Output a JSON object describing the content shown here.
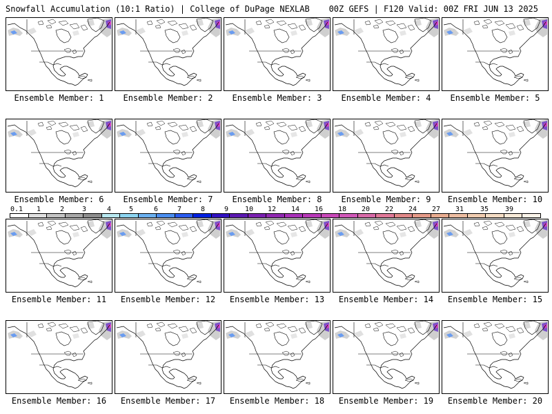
{
  "header": {
    "left": "Snowfall Accumulation (10:1 Ratio) | College of DuPage NEXLAB",
    "right": "00Z GEFS | F120 Valid: 00Z FRI JUN 13 2025"
  },
  "panels": [
    {
      "label": "Ensemble Member: 1"
    },
    {
      "label": "Ensemble Member: 2"
    },
    {
      "label": "Ensemble Member: 3"
    },
    {
      "label": "Ensemble Member: 4"
    },
    {
      "label": "Ensemble Member: 5"
    },
    {
      "label": "Ensemble Member: 6"
    },
    {
      "label": "Ensemble Member: 7"
    },
    {
      "label": "Ensemble Member: 8"
    },
    {
      "label": "Ensemble Member: 9"
    },
    {
      "label": "Ensemble Member: 10"
    },
    {
      "label": "Ensemble Member: 11"
    },
    {
      "label": "Ensemble Member: 12"
    },
    {
      "label": "Ensemble Member: 13"
    },
    {
      "label": "Ensemble Member: 14"
    },
    {
      "label": "Ensemble Member: 15"
    },
    {
      "label": "Ensemble Member: 16"
    },
    {
      "label": "Ensemble Member: 17"
    },
    {
      "label": "Ensemble Member: 18"
    },
    {
      "label": "Ensemble Member: 19"
    },
    {
      "label": "Ensemble Member: 20"
    }
  ],
  "colorbar": {
    "ticks": [
      "0.1",
      "1",
      "2",
      "3",
      "4",
      "5",
      "6",
      "7",
      "8",
      "9",
      "10",
      "12",
      "14",
      "16",
      "18",
      "20",
      "22",
      "24",
      "27",
      "31",
      "35",
      "39"
    ],
    "colors": [
      "#ffffff",
      "#e0e0e0",
      "#c4c4c4",
      "#a8a8a8",
      "#8e8e8e",
      "#b8e8f0",
      "#8cd4f0",
      "#6ab0f0",
      "#4a8ef0",
      "#2a5cf0",
      "#0020e0",
      "#3010c0",
      "#5a18b0",
      "#7a20b0",
      "#9028b0",
      "#a830b8",
      "#b838b8",
      "#c848b8",
      "#d058b8",
      "#d86aa8",
      "#e07898",
      "#e08888",
      "#e49a88",
      "#e8ac90",
      "#ecbca0",
      "#f0ccb0",
      "#f4dcc4",
      "#f8ead8",
      "#fcf4ea"
    ]
  },
  "colors": {
    "snow_light": "#c8c8c8",
    "snow_heavy": "#7a50c8",
    "snow_blue": "#6a9cf0",
    "snow_magenta": "#d040c0"
  },
  "icons": [
    "north-america-map"
  ]
}
